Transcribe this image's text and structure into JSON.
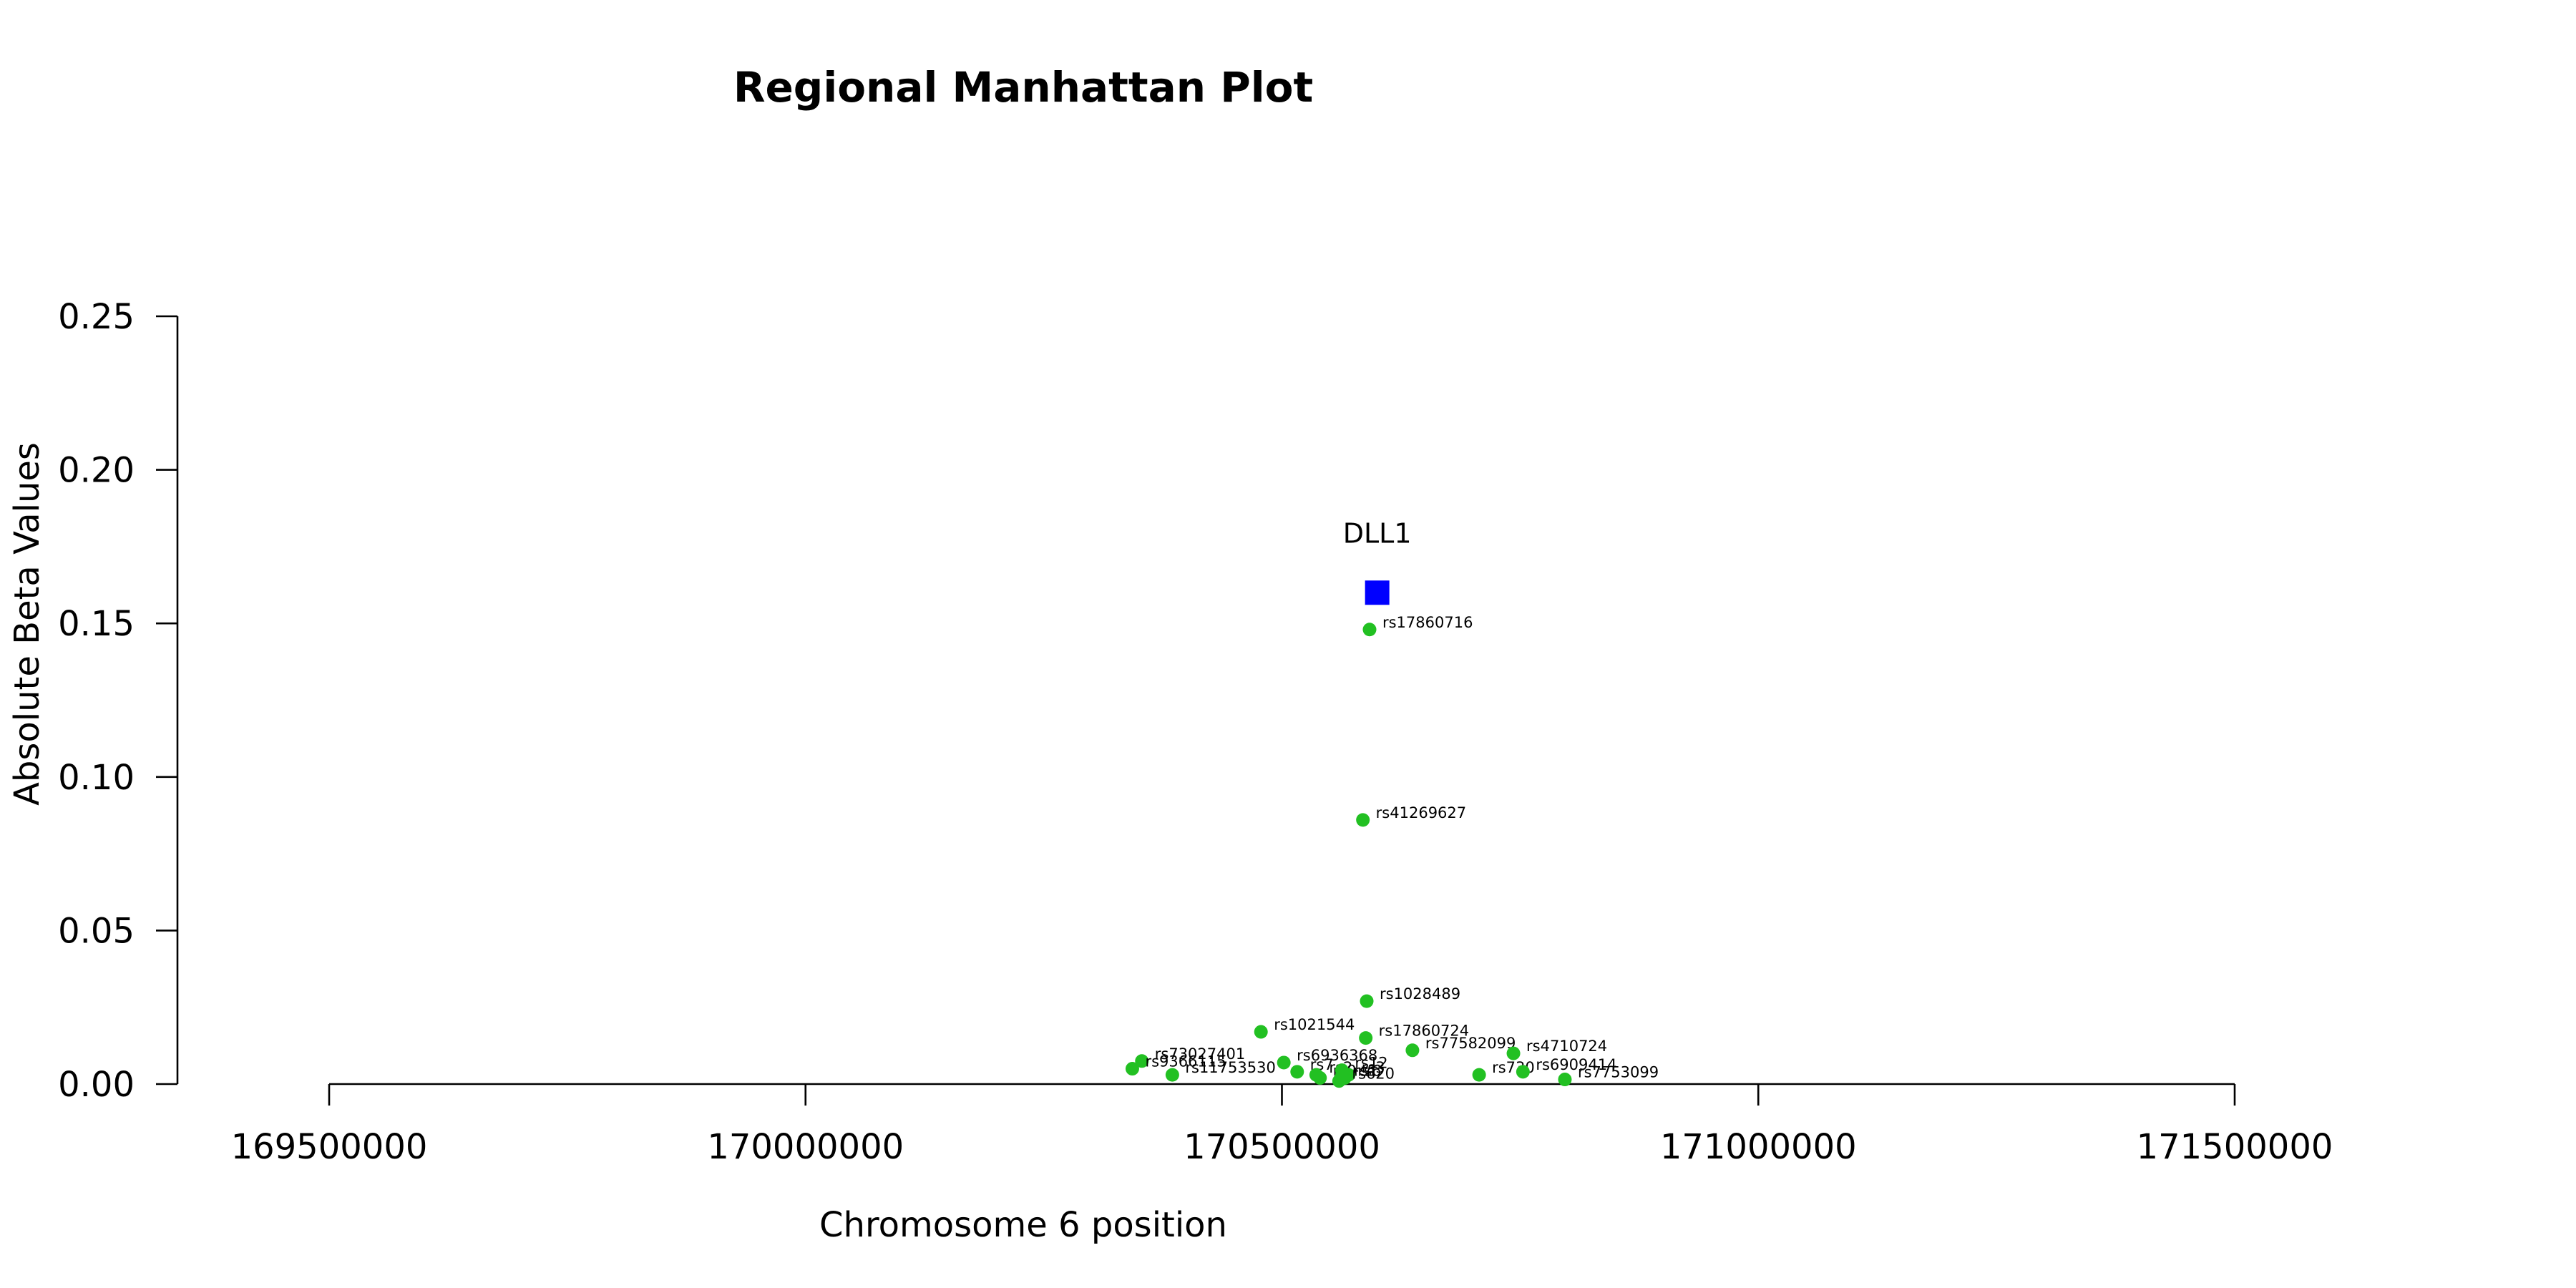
{
  "chart_data": {
    "type": "scatter",
    "title": "Regional Manhattan Plot",
    "xlabel": "Chromosome 6 position",
    "ylabel": "Absolute Beta Values",
    "xlim": [
      169350000,
      172000000
    ],
    "ylim": [
      0,
      0.25
    ],
    "x_ticks": [
      169500000,
      170000000,
      170500000,
      171000000,
      171500000
    ],
    "x_tick_labels": [
      "169500000",
      "170000000",
      "170500000",
      "171000000",
      "171500000"
    ],
    "y_ticks": [
      0,
      0.05,
      0.1,
      0.15,
      0.2,
      0.25
    ],
    "y_tick_labels": [
      "0.00",
      "0.05",
      "0.10",
      "0.15",
      "0.20",
      "0.25"
    ],
    "grid": false,
    "colors": {
      "snp": "#22c022",
      "gene": "#0000ff"
    },
    "gene": {
      "name": "DLL1",
      "x": 170600000,
      "y": 0.16
    },
    "snps": [
      {
        "name": "rs17860716",
        "x": 170592000,
        "y": 0.148
      },
      {
        "name": "rs41269627",
        "x": 170585000,
        "y": 0.086
      },
      {
        "name": "rs1028489",
        "x": 170589000,
        "y": 0.027
      },
      {
        "name": "rs1021544",
        "x": 170478000,
        "y": 0.017
      },
      {
        "name": "rs17860724",
        "x": 170588000,
        "y": 0.015
      },
      {
        "name": "rs77582099",
        "x": 170637000,
        "y": 0.011
      },
      {
        "name": "rs4710724",
        "x": 170743000,
        "y": 0.01
      },
      {
        "name": "rs73027401",
        "x": 170353000,
        "y": 0.0075
      },
      {
        "name": "rs6936368",
        "x": 170502000,
        "y": 0.007
      },
      {
        "name": "rs9366115",
        "x": 170343000,
        "y": 0.005
      },
      {
        "name": "rs11753530",
        "x": 170385000,
        "y": 0.003
      },
      {
        "name": "rs7",
        "x": 170516000,
        "y": 0.004
      },
      {
        "name": "rs2",
        "x": 170536000,
        "y": 0.003
      },
      {
        "name": "rs9",
        "x": 170540000,
        "y": 0.002
      },
      {
        "name": "rs1",
        "x": 170562000,
        "y": 0.002
      },
      {
        "name": "rs6",
        "x": 170566000,
        "y": 0.002
      },
      {
        "name": "rs3",
        "x": 170570000,
        "y": 0.003
      },
      {
        "name": "rs12",
        "x": 170563000,
        "y": 0.0045
      },
      {
        "name": "rs620",
        "x": 170560000,
        "y": 0.001
      },
      {
        "name": "rs730",
        "x": 170707000,
        "y": 0.003
      },
      {
        "name": "rs6909414",
        "x": 170753000,
        "y": 0.004
      },
      {
        "name": "rs7753099",
        "x": 170797000,
        "y": 0.0015
      }
    ]
  }
}
